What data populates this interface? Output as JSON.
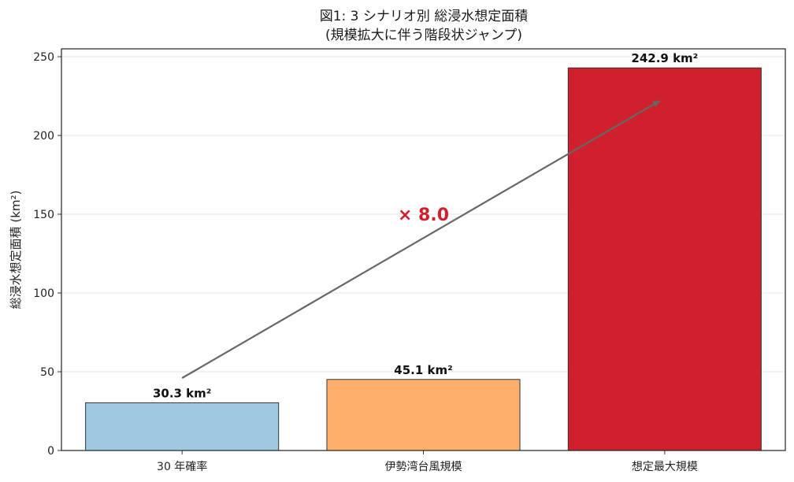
{
  "chart_data": {
    "type": "bar",
    "title_line1": "図1: 3 シナリオ別 総浸水想定面積",
    "title_line2": "(規模拡大に伴う階段状ジャンプ)",
    "ylabel": "総浸水想定面積 (km²)",
    "categories": [
      "30 年確率",
      "伊勢湾台風規模",
      "想定最大規模"
    ],
    "values": [
      30.3,
      45.1,
      242.9
    ],
    "data_labels": [
      "30.3 km²",
      "45.1 km²",
      "242.9 km²"
    ],
    "colors": [
      "#9ecae1",
      "#fdae6b",
      "#d0202e"
    ],
    "ylim": [
      0,
      255
    ],
    "yticks": [
      0,
      50,
      100,
      150,
      200,
      250
    ],
    "grid": true,
    "annotation": {
      "text": "× 8.0",
      "color": "#d0202e",
      "arrow_from": [
        0,
        46
      ],
      "arrow_to": [
        1.98,
        222
      ],
      "text_position": [
        1,
        150
      ]
    }
  }
}
